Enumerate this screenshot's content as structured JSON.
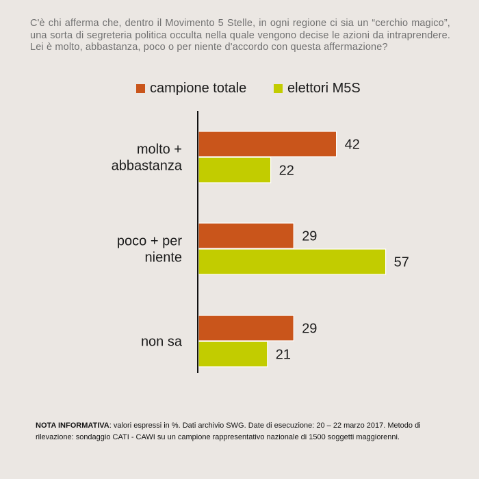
{
  "question": "C'è chi afferma che, dentro il Movimento 5 Stelle, in ogni regione ci sia un “cerchio magico”,  una sorta di segreteria politica occulta nella quale vengono decise le azioni da intraprendere. Lei è molto, abbastanza, poco o per niente d'accordo con questa affermazione?",
  "note": {
    "label": "NOTA INFORMATIVA",
    "text": ": valori espressi in %. Dati archivio SWG. Date di esecuzione: 20 – 22 marzo 2017. Metodo di rilevazione: sondaggio CATI - CAWI su un campione rappresentativo nazionale di 1500 soggetti maggiorenni."
  },
  "chart_data": {
    "type": "bar",
    "orientation": "horizontal",
    "title": "",
    "xlabel": "",
    "ylabel": "",
    "xlim": [
      0,
      60
    ],
    "grid": false,
    "legend_position": "top",
    "categories": [
      [
        "molto +",
        "abbastanza"
      ],
      [
        "poco + per",
        "niente"
      ],
      [
        "non sa"
      ]
    ],
    "series": [
      {
        "name": "campione totale",
        "color": "#c9551b",
        "values": [
          42,
          29,
          29
        ]
      },
      {
        "name": "elettori M5S",
        "color": "#c2cc00",
        "values": [
          22,
          57,
          21
        ]
      }
    ]
  }
}
